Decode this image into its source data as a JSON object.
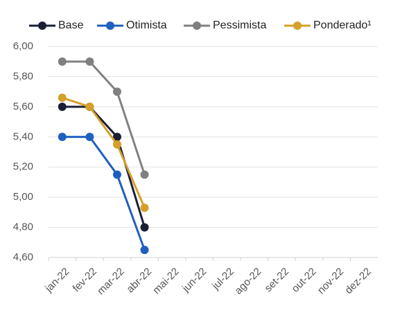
{
  "chart_data": {
    "type": "line",
    "categories": [
      "jan-22",
      "fev-22",
      "mar-22",
      "abr-22",
      "mai-22",
      "jun-22",
      "jul-22",
      "ago-22",
      "set-22",
      "out-22",
      "nov-22",
      "dez-22"
    ],
    "series": [
      {
        "name": "Base",
        "color": "#1a1f36",
        "values": [
          5.6,
          5.6,
          5.4,
          4.8,
          null,
          null,
          null,
          null,
          null,
          null,
          null,
          null
        ]
      },
      {
        "name": "Otimista",
        "color": "#1f5fbf",
        "values": [
          5.4,
          5.4,
          5.15,
          4.65,
          null,
          null,
          null,
          null,
          null,
          null,
          null,
          null
        ]
      },
      {
        "name": "Pessimista",
        "color": "#808080",
        "values": [
          5.9,
          5.9,
          5.7,
          5.15,
          null,
          null,
          null,
          null,
          null,
          null,
          null,
          null
        ]
      },
      {
        "name": "Ponderado¹",
        "color": "#d4a02a",
        "values": [
          5.66,
          5.6,
          5.35,
          4.93,
          null,
          null,
          null,
          null,
          null,
          null,
          null,
          null
        ]
      }
    ],
    "ylim": [
      4.6,
      6.0
    ],
    "yticks": [
      {
        "value": 4.6,
        "label": "4,60"
      },
      {
        "value": 4.8,
        "label": "4,80"
      },
      {
        "value": 5.0,
        "label": "5,00"
      },
      {
        "value": 5.2,
        "label": "5,20"
      },
      {
        "value": 5.4,
        "label": "5,40"
      },
      {
        "value": 5.6,
        "label": "5,60"
      },
      {
        "value": 5.8,
        "label": "5,80"
      },
      {
        "value": 6.0,
        "label": "6,00"
      }
    ],
    "grid": true,
    "legend": "top"
  }
}
